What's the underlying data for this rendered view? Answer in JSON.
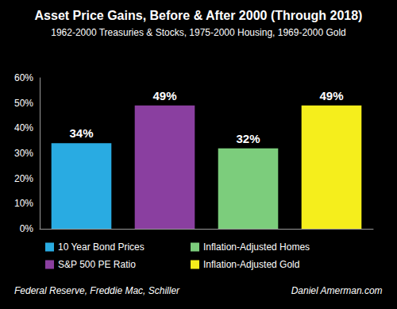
{
  "chart_data": {
    "type": "bar",
    "title": "Asset Price Gains, Before & After 2000 (Through 2018)",
    "subtitle": "1962-2000 Treasuries & Stocks, 1975-2000 Housing, 1969-2000 Gold",
    "categories": [
      "10 Year Bond Prices",
      "S&P 500 PE Ratio",
      "Inflation-Adjusted Homes",
      "Inflation-Adjusted Gold"
    ],
    "values": [
      34,
      49,
      32,
      49
    ],
    "value_labels": [
      "34%",
      "49%",
      "32%",
      "49%"
    ],
    "colors": [
      "#29abe2",
      "#8a3fa0",
      "#7ccd7c",
      "#f5ee1c"
    ],
    "ylim": [
      0,
      60
    ],
    "yticks": [
      {
        "value": 0,
        "label": "0%"
      },
      {
        "value": 10,
        "label": "10%"
      },
      {
        "value": 20,
        "label": "20%"
      },
      {
        "value": 30,
        "label": "30%"
      },
      {
        "value": 40,
        "label": "40%"
      },
      {
        "value": 50,
        "label": "50%"
      },
      {
        "value": 60,
        "label": "60%"
      }
    ],
    "grid": false,
    "legend": "bottom",
    "data_labels": true,
    "tick_labels": "y",
    "annotations": [
      "Federal Reserve, Freddie Mac, Schiller",
      "Daniel Amerman.com"
    ]
  }
}
